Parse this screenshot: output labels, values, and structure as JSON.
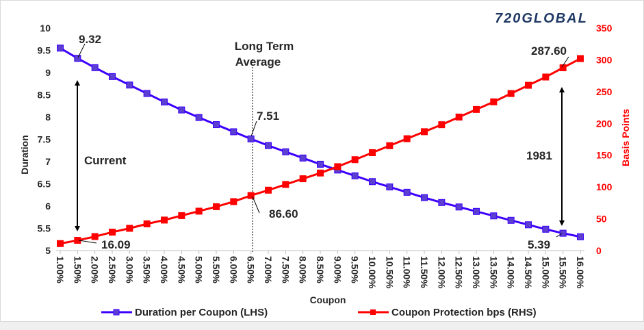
{
  "logo": {
    "text": "720GLOBAL"
  },
  "chart_data": {
    "type": "line",
    "title": "",
    "xlabel": "Coupon",
    "ylabel": "Duration",
    "ylabel_right": "Basis Points",
    "categories": [
      "1.00%",
      "1.50%",
      "2.00%",
      "2.50%",
      "3.00%",
      "3.50%",
      "4.00%",
      "4.50%",
      "5.00%",
      "5.50%",
      "6.00%",
      "6.50%",
      "7.00%",
      "7.50%",
      "8.00%",
      "8.50%",
      "9.00%",
      "9.50%",
      "10.00%",
      "10.50%",
      "11.00%",
      "11.50%",
      "12.00%",
      "12.50%",
      "13.00%",
      "13.50%",
      "14.00%",
      "14.50%",
      "15.00%",
      "15.50%",
      "16.00%"
    ],
    "ylim": [
      5,
      10
    ],
    "yticks": [
      "5",
      "5.5",
      "6",
      "6.5",
      "7",
      "7.5",
      "8",
      "8.5",
      "9",
      "9.5",
      "10"
    ],
    "ylim_right": [
      0,
      350
    ],
    "yticks_right": [
      "0",
      "50",
      "100",
      "150",
      "200",
      "250",
      "300",
      "350"
    ],
    "grid": false,
    "legend_position": "bottom",
    "series": [
      {
        "name": "Duration per Coupon (LHS)",
        "axis": "left",
        "color": "#3d00ff",
        "marker": "#5b3fd1",
        "values": [
          9.55,
          9.32,
          9.11,
          8.91,
          8.72,
          8.53,
          8.34,
          8.16,
          7.99,
          7.83,
          7.67,
          7.51,
          7.36,
          7.22,
          7.08,
          6.94,
          6.81,
          6.68,
          6.55,
          6.43,
          6.31,
          6.19,
          6.08,
          5.98,
          5.88,
          5.78,
          5.68,
          5.58,
          5.48,
          5.39,
          5.31
        ]
      },
      {
        "name": "Coupon Protection bps (RHS)",
        "axis": "right",
        "color": "#ff0000",
        "marker": "#ff0000",
        "values": [
          11,
          16.09,
          22,
          29,
          35,
          42,
          48,
          55,
          62,
          69,
          77,
          86.6,
          95,
          104,
          113,
          122,
          132,
          143,
          154,
          165,
          176,
          187,
          198,
          210,
          222,
          234,
          247,
          260,
          273,
          287.6,
          302
        ]
      }
    ],
    "annotations": {
      "long_term_average": [
        "Long Term",
        "Average"
      ],
      "current": "Current",
      "year_1981": "1981",
      "label_9_32": "9.32",
      "label_7_51": "7.51",
      "label_86_60": "86.60",
      "label_16_09": "16.09",
      "label_287_60": "287.60",
      "label_5_39": "5.39"
    }
  }
}
